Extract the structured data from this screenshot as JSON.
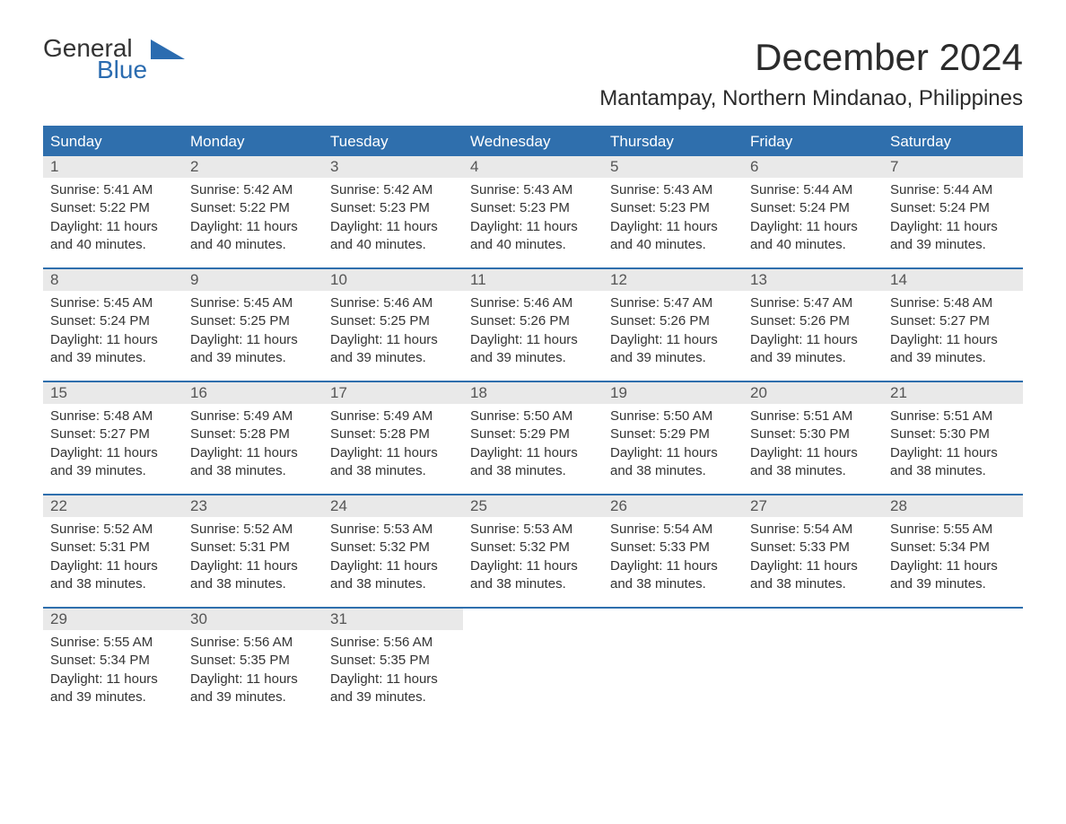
{
  "logo": {
    "top": "General",
    "bottom": "Blue"
  },
  "title": "December 2024",
  "subtitle": "Mantampay, Northern Mindanao, Philippines",
  "colors": {
    "header_bg": "#2f6fad",
    "header_text": "#ffffff",
    "daynum_bg": "#e9e9e9",
    "daynum_text": "#555555",
    "body_text": "#333333",
    "week_border": "#2f6fad",
    "logo_blue": "#2b6cb0"
  },
  "day_headers": [
    "Sunday",
    "Monday",
    "Tuesday",
    "Wednesday",
    "Thursday",
    "Friday",
    "Saturday"
  ],
  "weeks": [
    [
      {
        "n": "1",
        "sunrise": "Sunrise: 5:41 AM",
        "sunset": "Sunset: 5:22 PM",
        "d1": "Daylight: 11 hours",
        "d2": "and 40 minutes."
      },
      {
        "n": "2",
        "sunrise": "Sunrise: 5:42 AM",
        "sunset": "Sunset: 5:22 PM",
        "d1": "Daylight: 11 hours",
        "d2": "and 40 minutes."
      },
      {
        "n": "3",
        "sunrise": "Sunrise: 5:42 AM",
        "sunset": "Sunset: 5:23 PM",
        "d1": "Daylight: 11 hours",
        "d2": "and 40 minutes."
      },
      {
        "n": "4",
        "sunrise": "Sunrise: 5:43 AM",
        "sunset": "Sunset: 5:23 PM",
        "d1": "Daylight: 11 hours",
        "d2": "and 40 minutes."
      },
      {
        "n": "5",
        "sunrise": "Sunrise: 5:43 AM",
        "sunset": "Sunset: 5:23 PM",
        "d1": "Daylight: 11 hours",
        "d2": "and 40 minutes."
      },
      {
        "n": "6",
        "sunrise": "Sunrise: 5:44 AM",
        "sunset": "Sunset: 5:24 PM",
        "d1": "Daylight: 11 hours",
        "d2": "and 40 minutes."
      },
      {
        "n": "7",
        "sunrise": "Sunrise: 5:44 AM",
        "sunset": "Sunset: 5:24 PM",
        "d1": "Daylight: 11 hours",
        "d2": "and 39 minutes."
      }
    ],
    [
      {
        "n": "8",
        "sunrise": "Sunrise: 5:45 AM",
        "sunset": "Sunset: 5:24 PM",
        "d1": "Daylight: 11 hours",
        "d2": "and 39 minutes."
      },
      {
        "n": "9",
        "sunrise": "Sunrise: 5:45 AM",
        "sunset": "Sunset: 5:25 PM",
        "d1": "Daylight: 11 hours",
        "d2": "and 39 minutes."
      },
      {
        "n": "10",
        "sunrise": "Sunrise: 5:46 AM",
        "sunset": "Sunset: 5:25 PM",
        "d1": "Daylight: 11 hours",
        "d2": "and 39 minutes."
      },
      {
        "n": "11",
        "sunrise": "Sunrise: 5:46 AM",
        "sunset": "Sunset: 5:26 PM",
        "d1": "Daylight: 11 hours",
        "d2": "and 39 minutes."
      },
      {
        "n": "12",
        "sunrise": "Sunrise: 5:47 AM",
        "sunset": "Sunset: 5:26 PM",
        "d1": "Daylight: 11 hours",
        "d2": "and 39 minutes."
      },
      {
        "n": "13",
        "sunrise": "Sunrise: 5:47 AM",
        "sunset": "Sunset: 5:26 PM",
        "d1": "Daylight: 11 hours",
        "d2": "and 39 minutes."
      },
      {
        "n": "14",
        "sunrise": "Sunrise: 5:48 AM",
        "sunset": "Sunset: 5:27 PM",
        "d1": "Daylight: 11 hours",
        "d2": "and 39 minutes."
      }
    ],
    [
      {
        "n": "15",
        "sunrise": "Sunrise: 5:48 AM",
        "sunset": "Sunset: 5:27 PM",
        "d1": "Daylight: 11 hours",
        "d2": "and 39 minutes."
      },
      {
        "n": "16",
        "sunrise": "Sunrise: 5:49 AM",
        "sunset": "Sunset: 5:28 PM",
        "d1": "Daylight: 11 hours",
        "d2": "and 38 minutes."
      },
      {
        "n": "17",
        "sunrise": "Sunrise: 5:49 AM",
        "sunset": "Sunset: 5:28 PM",
        "d1": "Daylight: 11 hours",
        "d2": "and 38 minutes."
      },
      {
        "n": "18",
        "sunrise": "Sunrise: 5:50 AM",
        "sunset": "Sunset: 5:29 PM",
        "d1": "Daylight: 11 hours",
        "d2": "and 38 minutes."
      },
      {
        "n": "19",
        "sunrise": "Sunrise: 5:50 AM",
        "sunset": "Sunset: 5:29 PM",
        "d1": "Daylight: 11 hours",
        "d2": "and 38 minutes."
      },
      {
        "n": "20",
        "sunrise": "Sunrise: 5:51 AM",
        "sunset": "Sunset: 5:30 PM",
        "d1": "Daylight: 11 hours",
        "d2": "and 38 minutes."
      },
      {
        "n": "21",
        "sunrise": "Sunrise: 5:51 AM",
        "sunset": "Sunset: 5:30 PM",
        "d1": "Daylight: 11 hours",
        "d2": "and 38 minutes."
      }
    ],
    [
      {
        "n": "22",
        "sunrise": "Sunrise: 5:52 AM",
        "sunset": "Sunset: 5:31 PM",
        "d1": "Daylight: 11 hours",
        "d2": "and 38 minutes."
      },
      {
        "n": "23",
        "sunrise": "Sunrise: 5:52 AM",
        "sunset": "Sunset: 5:31 PM",
        "d1": "Daylight: 11 hours",
        "d2": "and 38 minutes."
      },
      {
        "n": "24",
        "sunrise": "Sunrise: 5:53 AM",
        "sunset": "Sunset: 5:32 PM",
        "d1": "Daylight: 11 hours",
        "d2": "and 38 minutes."
      },
      {
        "n": "25",
        "sunrise": "Sunrise: 5:53 AM",
        "sunset": "Sunset: 5:32 PM",
        "d1": "Daylight: 11 hours",
        "d2": "and 38 minutes."
      },
      {
        "n": "26",
        "sunrise": "Sunrise: 5:54 AM",
        "sunset": "Sunset: 5:33 PM",
        "d1": "Daylight: 11 hours",
        "d2": "and 38 minutes."
      },
      {
        "n": "27",
        "sunrise": "Sunrise: 5:54 AM",
        "sunset": "Sunset: 5:33 PM",
        "d1": "Daylight: 11 hours",
        "d2": "and 38 minutes."
      },
      {
        "n": "28",
        "sunrise": "Sunrise: 5:55 AM",
        "sunset": "Sunset: 5:34 PM",
        "d1": "Daylight: 11 hours",
        "d2": "and 39 minutes."
      }
    ],
    [
      {
        "n": "29",
        "sunrise": "Sunrise: 5:55 AM",
        "sunset": "Sunset: 5:34 PM",
        "d1": "Daylight: 11 hours",
        "d2": "and 39 minutes."
      },
      {
        "n": "30",
        "sunrise": "Sunrise: 5:56 AM",
        "sunset": "Sunset: 5:35 PM",
        "d1": "Daylight: 11 hours",
        "d2": "and 39 minutes."
      },
      {
        "n": "31",
        "sunrise": "Sunrise: 5:56 AM",
        "sunset": "Sunset: 5:35 PM",
        "d1": "Daylight: 11 hours",
        "d2": "and 39 minutes."
      },
      {
        "empty": true
      },
      {
        "empty": true
      },
      {
        "empty": true
      },
      {
        "empty": true
      }
    ]
  ]
}
